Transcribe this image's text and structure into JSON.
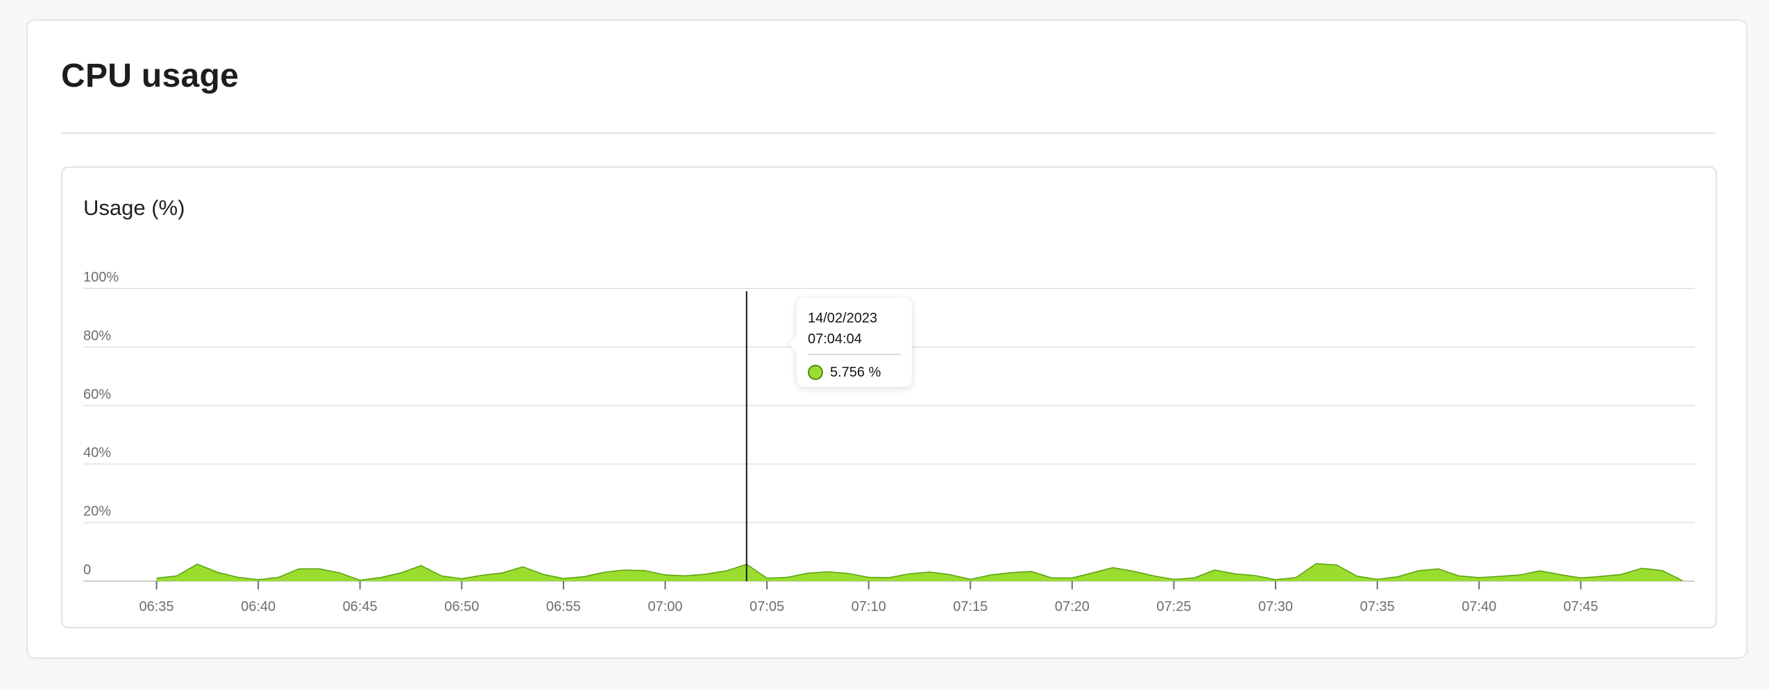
{
  "card": {
    "title": "CPU usage"
  },
  "chart_data": {
    "type": "area",
    "title": "Usage (%)",
    "xlabel": "",
    "ylabel": "",
    "x_tick_labels": [
      "06:35",
      "06:40",
      "06:45",
      "06:50",
      "06:55",
      "07:00",
      "07:05",
      "07:10",
      "07:15",
      "07:20",
      "07:25",
      "07:30",
      "07:35",
      "07:40",
      "07:45"
    ],
    "y_tick_labels": [
      "0",
      "20%",
      "40%",
      "60%",
      "80%",
      "100%"
    ],
    "y_ticks": [
      0,
      20,
      40,
      60,
      80,
      100
    ],
    "ylim": [
      0,
      100
    ],
    "xlim_minutes_after_0635": [
      -3.6,
      75.6
    ],
    "grid": true,
    "series": [
      {
        "color": "#9bdd2f",
        "line_color": "#5ba40f",
        "x": [
          0,
          1,
          2,
          3,
          4,
          5,
          6,
          7,
          8,
          9,
          10,
          11,
          12,
          13,
          14,
          15,
          16,
          17,
          18,
          19,
          20,
          21,
          22,
          23,
          24,
          25,
          26,
          27,
          28,
          29,
          30,
          31,
          32,
          33,
          34,
          35,
          36,
          37,
          38,
          39,
          40,
          41,
          42,
          43,
          44,
          45,
          46,
          47,
          48,
          49,
          50,
          51,
          52,
          53,
          54,
          55,
          56,
          57,
          58,
          59,
          60,
          61,
          62,
          63,
          64,
          65,
          66,
          67,
          68,
          69,
          70,
          71,
          72,
          73,
          74,
          75
        ],
        "values": [
          1,
          1.8,
          5.8,
          3,
          1.3,
          0.5,
          1.3,
          4.2,
          4.2,
          2.8,
          0.3,
          1.2,
          2.8,
          5.3,
          1.8,
          0.8,
          2,
          2.8,
          4.9,
          2.3,
          0.9,
          1.5,
          3,
          3.8,
          3.6,
          2.1,
          1.8,
          2.4,
          3.5,
          5.756,
          1,
          1.3,
          2.7,
          3.2,
          2.6,
          1.3,
          1.2,
          2.5,
          3.1,
          2.2,
          0.6,
          2.1,
          2.9,
          3.3,
          1.1,
          1.1,
          2.8,
          4.6,
          3.4,
          1.8,
          0.6,
          1.1,
          3.8,
          2.5,
          1.9,
          0.5,
          1.2,
          6,
          5.5,
          1.7,
          0.6,
          1.5,
          3.5,
          4.2,
          1.8,
          1.2,
          1.6,
          2.1,
          3.5,
          2.2,
          1.1,
          1.6,
          2.3,
          4.4,
          3.6,
          0.2
        ]
      }
    ],
    "tooltip": {
      "date": "14/02/2023",
      "time": "07:04:04",
      "value_label": "5.756 %",
      "value": 5.756
    }
  }
}
